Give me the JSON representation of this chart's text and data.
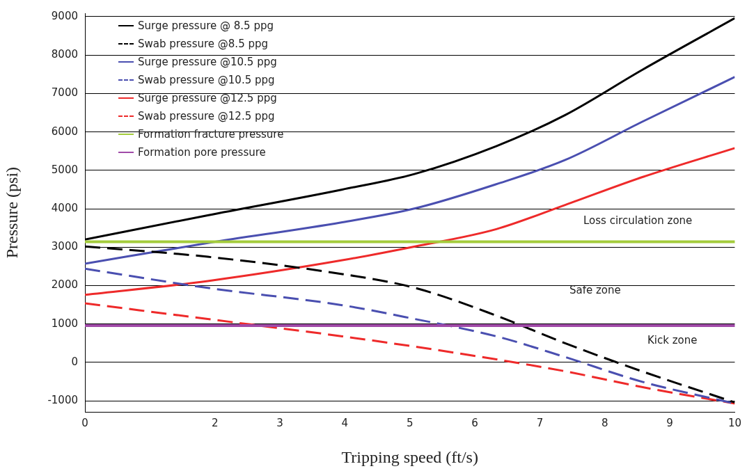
{
  "chart_data": {
    "type": "line",
    "xlabel": "Tripping speed (ft/s)",
    "ylabel": "Pressure (psi)",
    "xlim": [
      0,
      10
    ],
    "xticks": [
      0,
      2,
      3,
      4,
      5,
      6,
      7,
      8,
      9,
      10
    ],
    "ylim": [
      -1290,
      9090
    ],
    "yticks": [
      -1000,
      0,
      1000,
      2000,
      3000,
      4000,
      5000,
      6000,
      7000,
      8000,
      9000
    ],
    "grid": "y",
    "legend": "top left",
    "marker": "none",
    "x": [
      0,
      1.89,
      3.96,
      5.08,
      6.33,
      7.39,
      8.57,
      10
    ],
    "series": [
      {
        "name": "Surge pressure @ 8.5 ppg",
        "color": "#000000",
        "line_style": "solid",
        "values": [
          3200,
          3830,
          4500,
          4910,
          5630,
          6440,
          7610,
          8960
        ]
      },
      {
        "name": "Swab pressure @8.5 ppg",
        "color": "#000000",
        "line_style": "dashed",
        "values": [
          3020,
          2750,
          2300,
          1940,
          1220,
          500,
          -230,
          -1040
        ]
      },
      {
        "name": "Surge pressure @10.5 ppg",
        "color": "#4a4fb0",
        "line_style": "solid",
        "values": [
          2570,
          3110,
          3650,
          4010,
          4640,
          5270,
          6260,
          7430
        ]
      },
      {
        "name": "Swab pressure @10.5 ppg",
        "color": "#4a4fb0",
        "line_style": "dashed",
        "values": [
          2440,
          1940,
          1490,
          1130,
          680,
          140,
          -500,
          -1070
        ]
      },
      {
        "name": "Surge pressure @12.5 ppg",
        "color": "#ee2a2a",
        "line_style": "solid",
        "values": [
          1760,
          2120,
          2660,
          3020,
          3470,
          4100,
          4820,
          5580
        ]
      },
      {
        "name": "Swab pressure @12.5 ppg",
        "color": "#ee2a2a",
        "line_style": "dashed",
        "values": [
          1540,
          1130,
          680,
          410,
          80,
          -230,
          -640,
          -1070
        ]
      }
    ],
    "ref_lines": [
      {
        "axis": "y",
        "value": 3140,
        "label": "Formation fracture pressure",
        "color": "#a4cc3c",
        "line_style": "solid"
      },
      {
        "axis": "y",
        "value": 960,
        "label": "Formation pore pressure",
        "color": "#a04aa8",
        "line_style": "solid"
      }
    ],
    "annotations": [
      "Loss circulation zone",
      "Safe zone",
      "Kick zone"
    ]
  }
}
